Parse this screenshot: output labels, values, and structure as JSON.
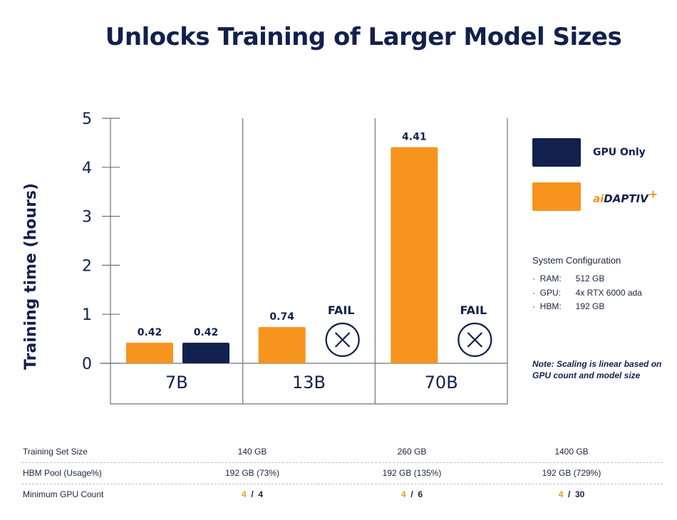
{
  "chart_data": {
    "type": "bar",
    "title": "Unlocks Training of Larger Model Sizes",
    "ylabel": "Training time (hours)",
    "xlabel": "",
    "ylim": [
      0,
      5
    ],
    "yticks": [
      "0",
      "1",
      "2",
      "3",
      "4",
      "5"
    ],
    "categories": [
      "7B",
      "13B",
      "70B"
    ],
    "series": [
      {
        "name": "aiDAPTIV+",
        "color": "#f7941d",
        "values": [
          0.42,
          0.74,
          4.41
        ],
        "labels": [
          "0.42",
          "0.74",
          "4.41"
        ]
      },
      {
        "name": "GPU Only",
        "color": "#12204d",
        "values": [
          0.42,
          null,
          null
        ],
        "labels": [
          "0.42",
          "FAIL",
          "FAIL"
        ]
      }
    ],
    "legend": {
      "placement": "right"
    },
    "grid": false
  },
  "legend": {
    "gpu_only": "GPU Only",
    "brand_ai": "ai",
    "brand_rest": "DAPTIV",
    "brand_plus": "+"
  },
  "system": {
    "title": "System Configuration",
    "rows": [
      {
        "key": "RAM:",
        "value": "512 GB"
      },
      {
        "key": "GPU:",
        "value": "4x RTX 6000 ada"
      },
      {
        "key": "HBM:",
        "value": "192 GB"
      }
    ]
  },
  "note": "Note: Scaling is linear based on GPU count and model size",
  "table": {
    "rows": [
      {
        "label": "Training Set Size",
        "values": [
          "140 GB",
          "260 GB",
          "1400 GB"
        ]
      },
      {
        "label": "HBM Pool (Usage%)",
        "values": [
          "192 GB (73%)",
          "192 GB (135%)",
          "192 GB (729%)"
        ]
      },
      {
        "label": "Minimum GPU Count",
        "gpu": [
          {
            "a": "4",
            "sep": "/",
            "b": "4"
          },
          {
            "a": "4",
            "sep": "/",
            "b": "6"
          },
          {
            "a": "4",
            "sep": "/",
            "b": "30"
          }
        ]
      }
    ]
  }
}
